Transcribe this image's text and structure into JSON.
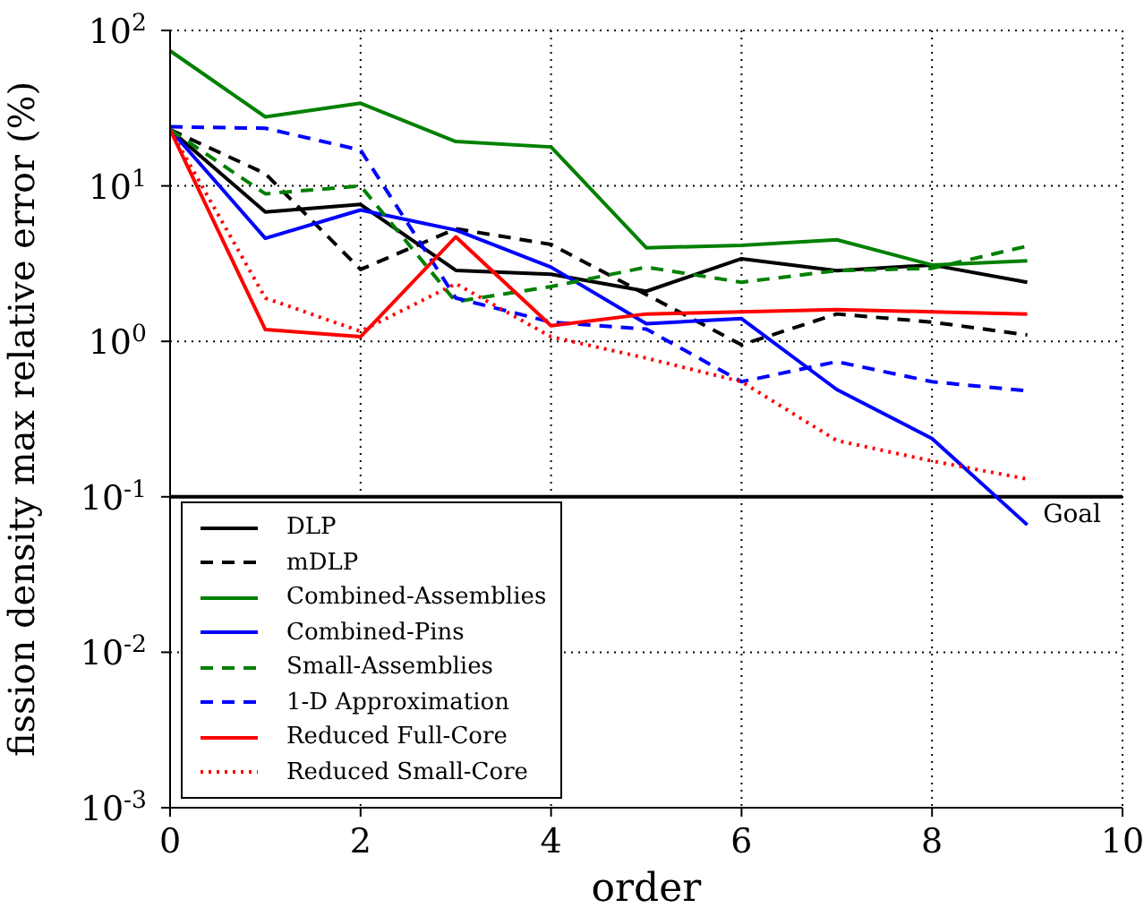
{
  "chart_data": {
    "type": "line",
    "xlabel": "order",
    "ylabel": "fission density max relative error (%)",
    "x": [
      0,
      1,
      2,
      3,
      4,
      5,
      6,
      7,
      8,
      9
    ],
    "series": [
      {
        "name": "DLP",
        "color": "#000000",
        "line_style": "solid",
        "values": [
          23,
          6.8,
          7.6,
          2.86,
          2.7,
          2.1,
          3.4,
          2.85,
          3.1,
          2.4
        ]
      },
      {
        "name": "mDLP",
        "color": "#000000",
        "line_style": "dashed",
        "values": [
          23,
          12,
          2.9,
          5.3,
          4.2,
          2.0,
          0.95,
          1.5,
          1.33,
          1.1
        ]
      },
      {
        "name": "Combined-Assemblies",
        "color": "#008000",
        "line_style": "solid",
        "values": [
          74,
          27.8,
          34,
          19.3,
          17.8,
          4.0,
          4.15,
          4.5,
          3.1,
          3.3
        ]
      },
      {
        "name": "Combined-Pins",
        "color": "#0000ff",
        "line_style": "solid",
        "values": [
          23,
          4.6,
          7.0,
          5.2,
          3.0,
          1.3,
          1.4,
          0.49,
          0.237,
          0.066
        ]
      },
      {
        "name": "Small-Assemblies",
        "color": "#008000",
        "line_style": "dashed",
        "values": [
          23,
          8.9,
          10,
          1.8,
          2.25,
          3.0,
          2.4,
          2.85,
          2.95,
          4.1
        ]
      },
      {
        "name": "1-D Approximation",
        "color": "#0000ff",
        "line_style": "dashed",
        "values": [
          24,
          23.5,
          17,
          1.9,
          1.33,
          1.2,
          0.55,
          0.74,
          0.55,
          0.48
        ]
      },
      {
        "name": "Reduced Full-Core",
        "color": "#ff0000",
        "line_style": "solid",
        "values": [
          23,
          1.19,
          1.07,
          4.7,
          1.26,
          1.5,
          1.55,
          1.6,
          1.55,
          1.5
        ]
      },
      {
        "name": "Reduced Small-Core",
        "color": "#ff0000",
        "line_style": "dotted",
        "values": [
          23,
          1.9,
          1.16,
          2.35,
          1.07,
          0.78,
          0.55,
          0.23,
          0.17,
          0.13
        ]
      }
    ],
    "xlim": [
      0,
      10
    ],
    "xticks": [
      0,
      2,
      4,
      6,
      8,
      10
    ],
    "ylim": [
      0.001,
      100
    ],
    "yticks": [
      {
        "value": 0.001,
        "label": "10$^{-3}$"
      },
      {
        "value": 0.01,
        "label": "10$^{-2}$"
      },
      {
        "value": 0.1,
        "label": "10$^{-1}$"
      },
      {
        "value": 1,
        "label": "10$^{0}$"
      },
      {
        "value": 10,
        "label": "10$^{1}$"
      },
      {
        "value": 100,
        "label": "10$^{2}$"
      }
    ],
    "log": "y",
    "grid": true,
    "legend": "bottom left",
    "marker": "none",
    "ref_lines": [
      {
        "axis": "y",
        "value": 0.1,
        "label": "Goal",
        "color": "#000000",
        "line_style": "solid"
      }
    ]
  }
}
